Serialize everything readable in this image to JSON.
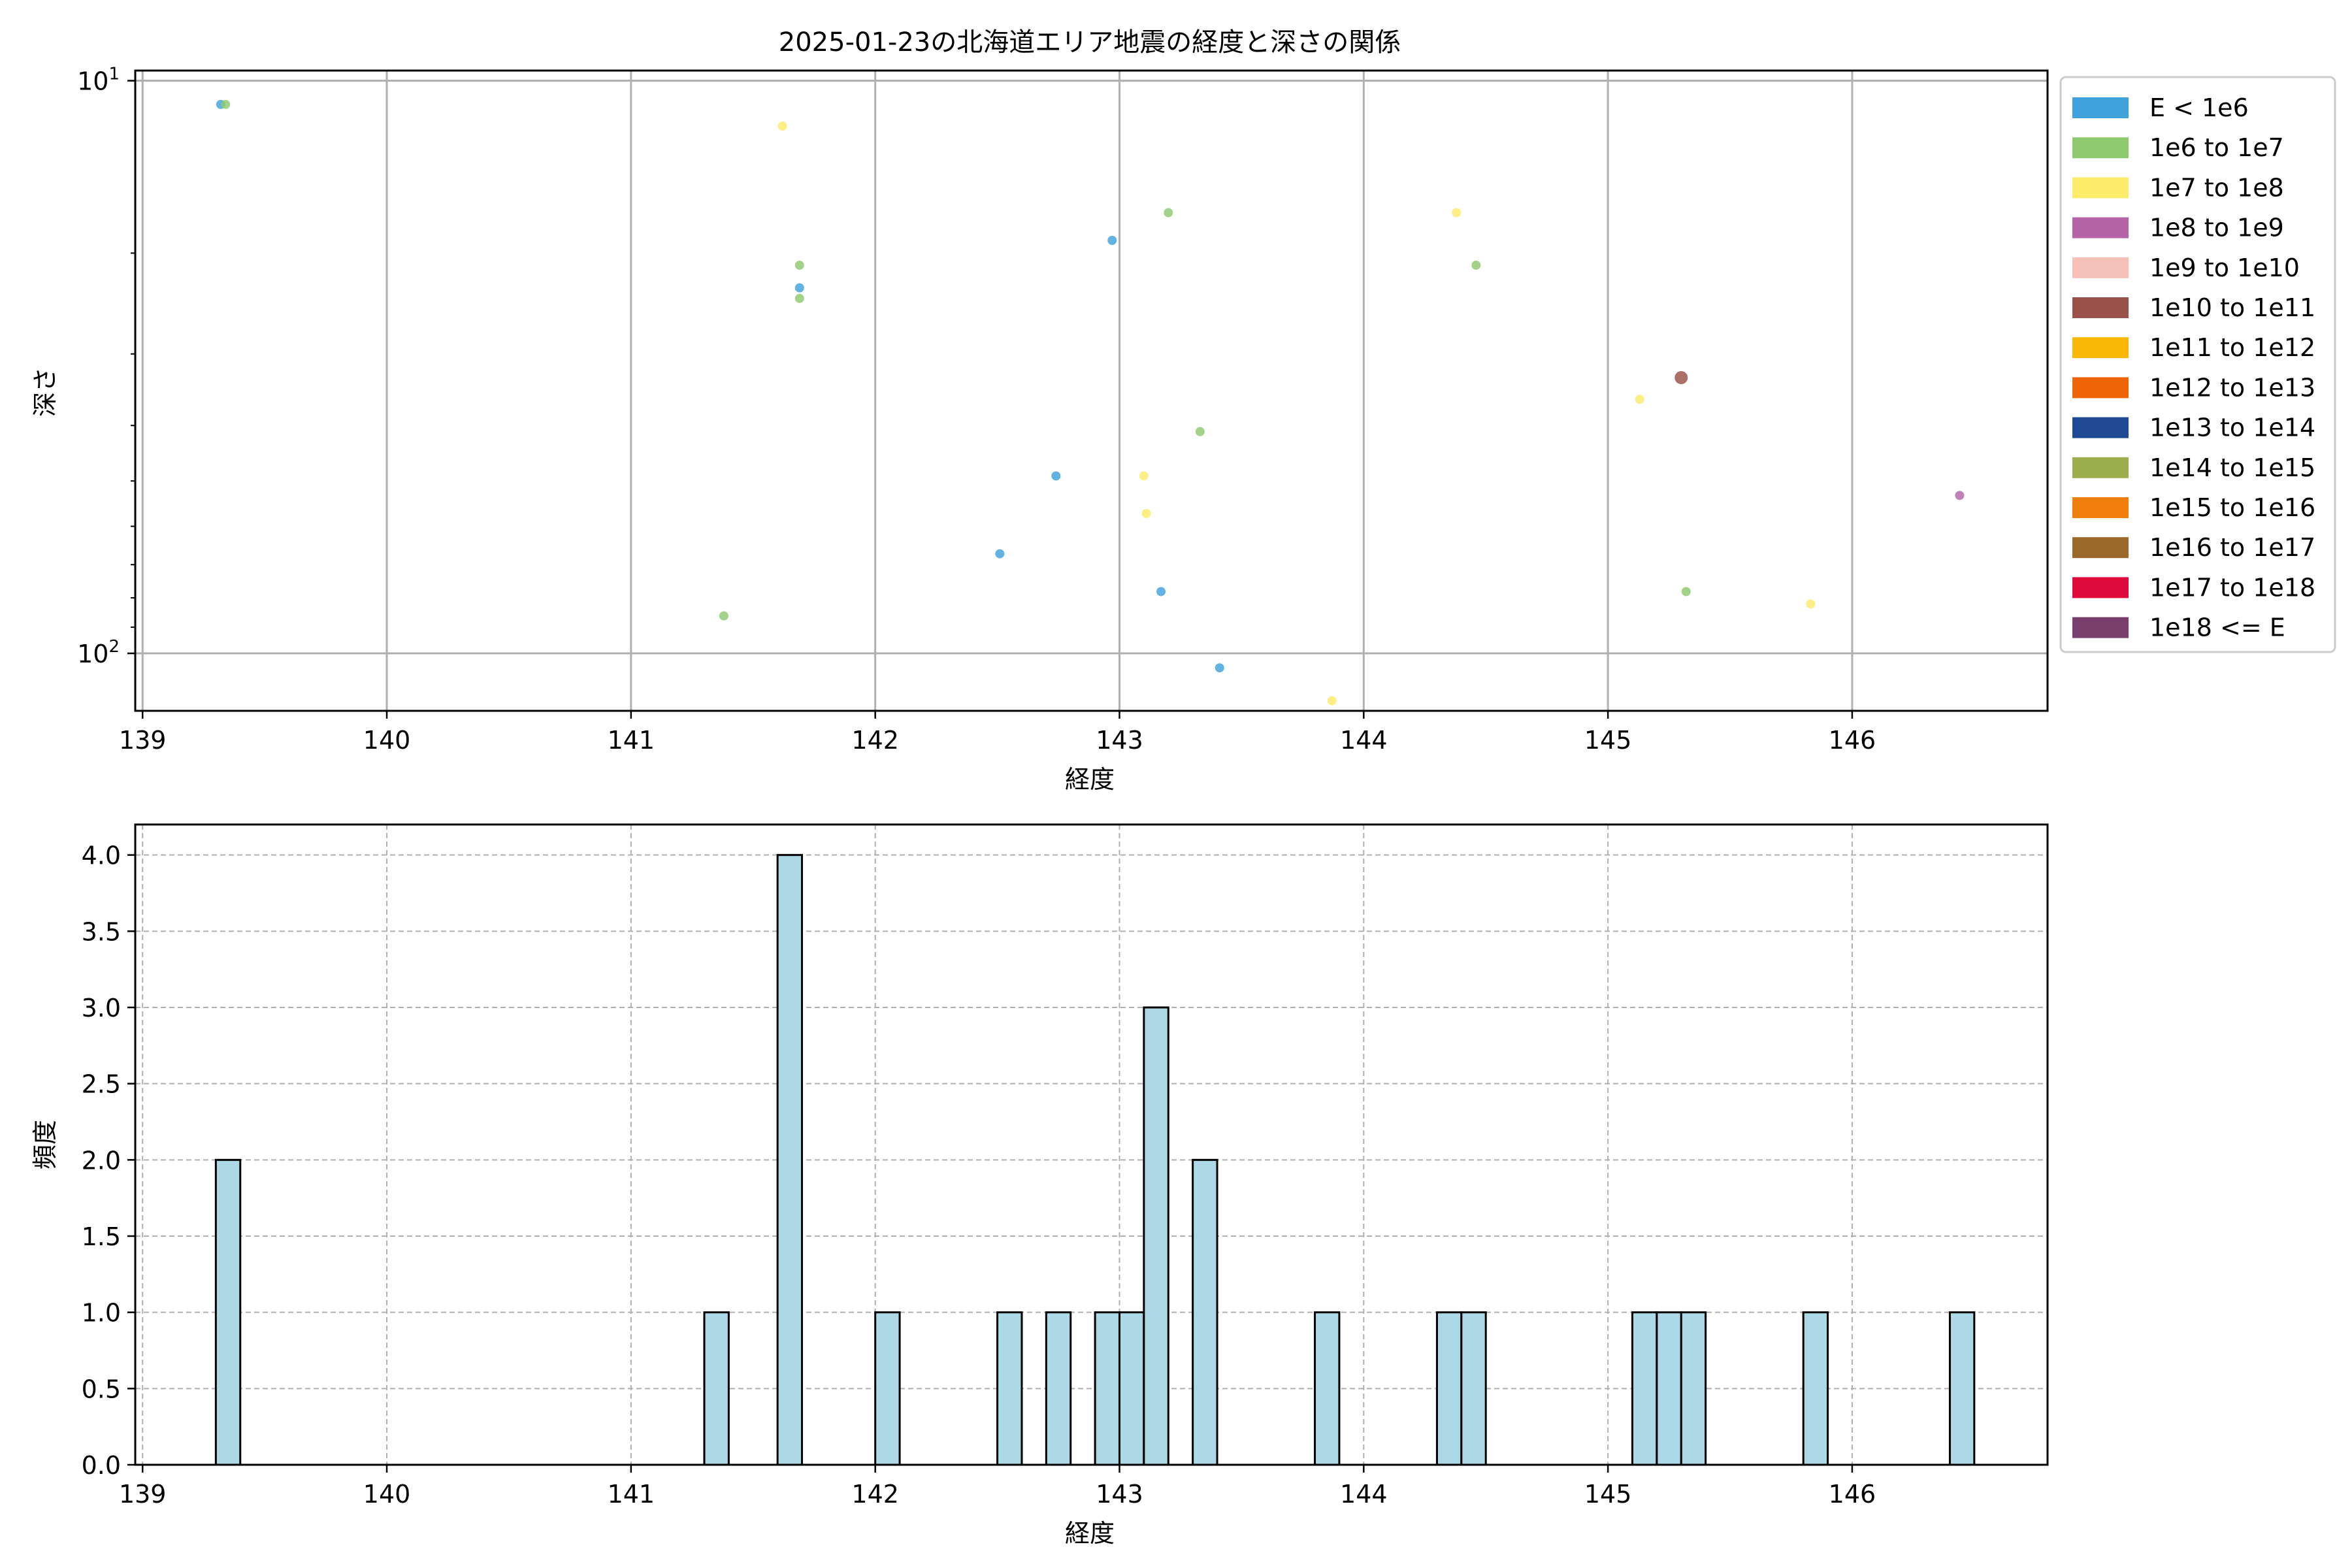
{
  "chart_data": [
    {
      "type": "scatter",
      "title": "2025-01-23の北海道エリア地震の経度と深さの関係",
      "xlabel": "経度",
      "ylabel": "深さ",
      "xlim": [
        138.97,
        146.8
      ],
      "ylim": [
        126,
        9.6
      ],
      "yscale": "log",
      "y_inverted": true,
      "x_ticks": [
        139,
        140,
        141,
        142,
        143,
        144,
        145,
        146
      ],
      "y_ticks": [
        {
          "value": 10,
          "base": "10",
          "exp": "1"
        },
        {
          "value": 100,
          "base": "10",
          "exp": "2"
        }
      ],
      "grid": true,
      "legend_position": "outside-right",
      "legend": [
        {
          "label": "E < 1e6",
          "color": "#3fa2dd"
        },
        {
          "label": "1e6 to 1e7",
          "color": "#8fc96f"
        },
        {
          "label": "1e7 to 1e8",
          "color": "#fdeb6a"
        },
        {
          "label": "1e8 to 1e9",
          "color": "#b565a7"
        },
        {
          "label": "1e9 to 1e10",
          "color": "#f4c0b8"
        },
        {
          "label": "1e10 to 1e11",
          "color": "#9a5149"
        },
        {
          "label": "1e11 to 1e12",
          "color": "#f9b807"
        },
        {
          "label": "1e12 to 1e13",
          "color": "#ef6406"
        },
        {
          "label": "1e13 to 1e14",
          "color": "#1f4a93"
        },
        {
          "label": "1e14 to 1e15",
          "color": "#9dae4f"
        },
        {
          "label": "1e15 to 1e16",
          "color": "#f07e0a"
        },
        {
          "label": "1e16 to 1e17",
          "color": "#9b6a2b"
        },
        {
          "label": "1e17 to 1e18",
          "color": "#de0a3c"
        },
        {
          "label": "1e18 <= E",
          "color": "#7a3e6d"
        }
      ],
      "points": [
        {
          "x": 139.32,
          "y": 11,
          "color": "#3fa2dd",
          "s": 1
        },
        {
          "x": 139.34,
          "y": 11,
          "color": "#8fc96f",
          "s": 1
        },
        {
          "x": 141.62,
          "y": 12,
          "color": "#fdeb6a",
          "s": 1
        },
        {
          "x": 141.69,
          "y": 21,
          "color": "#8fc96f",
          "s": 1
        },
        {
          "x": 141.69,
          "y": 23,
          "color": "#3fa2dd",
          "s": 1
        },
        {
          "x": 141.69,
          "y": 24,
          "color": "#8fc96f",
          "s": 1
        },
        {
          "x": 142.97,
          "y": 19,
          "color": "#3fa2dd",
          "s": 1
        },
        {
          "x": 143.2,
          "y": 17,
          "color": "#8fc96f",
          "s": 1
        },
        {
          "x": 144.38,
          "y": 17,
          "color": "#fdeb6a",
          "s": 1
        },
        {
          "x": 144.46,
          "y": 21,
          "color": "#8fc96f",
          "s": 1
        },
        {
          "x": 145.3,
          "y": 33,
          "color": "#9a5149",
          "s": 2
        },
        {
          "x": 145.13,
          "y": 36,
          "color": "#fdeb6a",
          "s": 1
        },
        {
          "x": 143.33,
          "y": 41,
          "color": "#8fc96f",
          "s": 1
        },
        {
          "x": 142.74,
          "y": 49,
          "color": "#3fa2dd",
          "s": 1
        },
        {
          "x": 143.1,
          "y": 49,
          "color": "#fdeb6a",
          "s": 1
        },
        {
          "x": 143.11,
          "y": 57,
          "color": "#fdeb6a",
          "s": 1
        },
        {
          "x": 146.44,
          "y": 53,
          "color": "#b565a7",
          "s": 1
        },
        {
          "x": 142.51,
          "y": 67,
          "color": "#3fa2dd",
          "s": 1
        },
        {
          "x": 143.17,
          "y": 78,
          "color": "#3fa2dd",
          "s": 1
        },
        {
          "x": 145.32,
          "y": 78,
          "color": "#8fc96f",
          "s": 1
        },
        {
          "x": 145.83,
          "y": 82,
          "color": "#fdeb6a",
          "s": 1
        },
        {
          "x": 141.38,
          "y": 86,
          "color": "#8fc96f",
          "s": 1
        },
        {
          "x": 143.41,
          "y": 106,
          "color": "#3fa2dd",
          "s": 1
        },
        {
          "x": 143.87,
          "y": 121,
          "color": "#fdeb6a",
          "s": 1
        }
      ]
    },
    {
      "type": "bar",
      "subtype": "histogram",
      "title": "",
      "xlabel": "経度",
      "ylabel": "頻度",
      "xlim": [
        138.97,
        146.8
      ],
      "ylim": [
        0,
        4.2
      ],
      "x_ticks": [
        139,
        140,
        141,
        142,
        143,
        144,
        145,
        146
      ],
      "y_ticks": [
        "0.0",
        "0.5",
        "1.0",
        "1.5",
        "2.0",
        "2.5",
        "3.0",
        "3.5",
        "4.0"
      ],
      "grid": "dashed",
      "bar_color": "#add8e6",
      "bin_width": 0.1,
      "bins": [
        {
          "x": 139.3,
          "count": 2
        },
        {
          "x": 141.3,
          "count": 1
        },
        {
          "x": 141.6,
          "count": 4
        },
        {
          "x": 142.0,
          "count": 1
        },
        {
          "x": 142.5,
          "count": 1
        },
        {
          "x": 142.7,
          "count": 1
        },
        {
          "x": 142.9,
          "count": 1
        },
        {
          "x": 143.0,
          "count": 1
        },
        {
          "x": 143.1,
          "count": 3
        },
        {
          "x": 143.3,
          "count": 2
        },
        {
          "x": 143.8,
          "count": 1
        },
        {
          "x": 144.3,
          "count": 1
        },
        {
          "x": 144.4,
          "count": 1
        },
        {
          "x": 145.1,
          "count": 1
        },
        {
          "x": 145.2,
          "count": 1
        },
        {
          "x": 145.3,
          "count": 1
        },
        {
          "x": 145.8,
          "count": 1
        },
        {
          "x": 146.4,
          "count": 1
        }
      ]
    }
  ]
}
